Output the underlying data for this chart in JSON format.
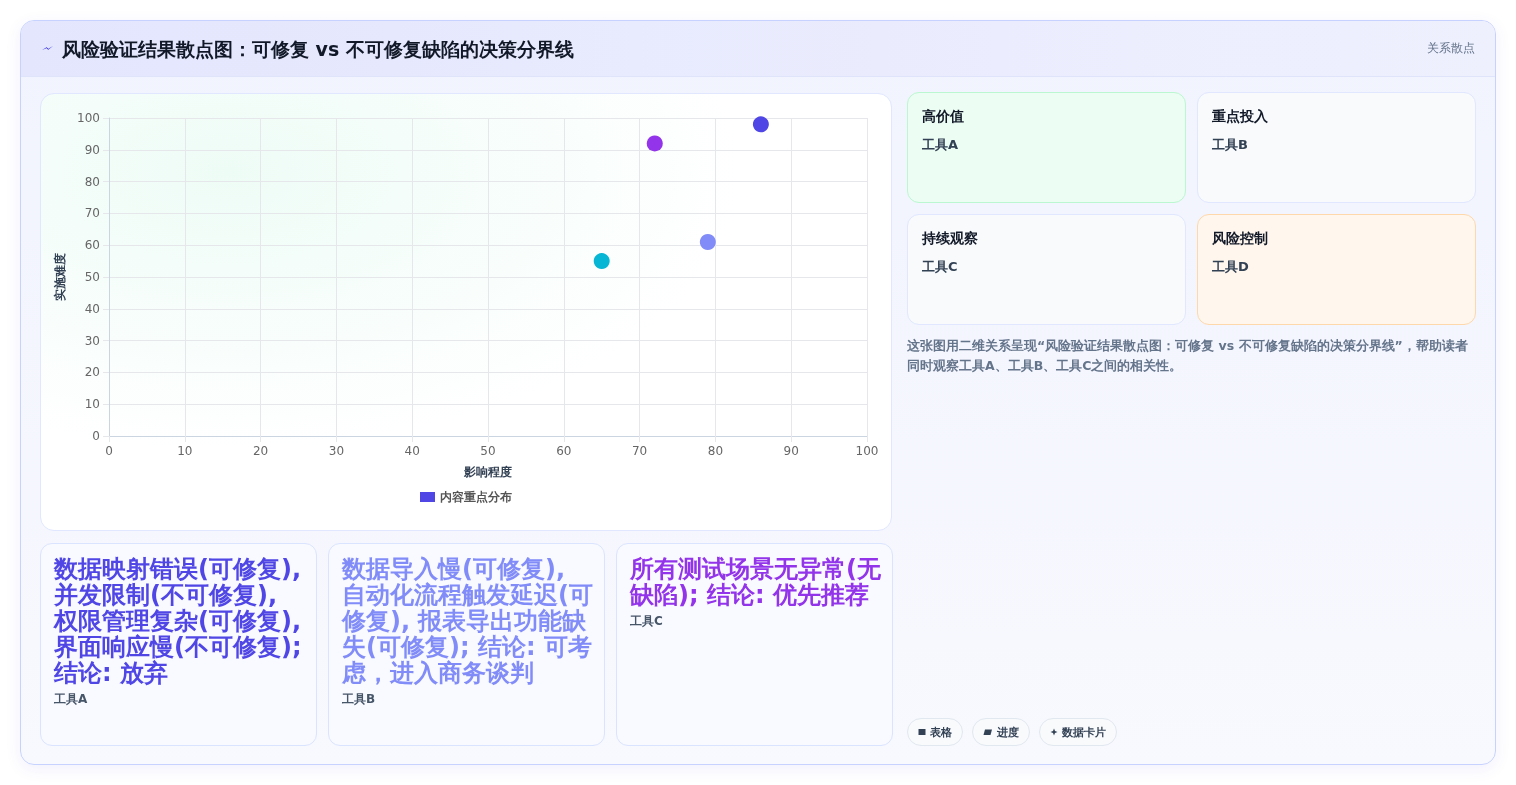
{
  "chart_data": {
    "type": "scatter",
    "title": "风险验证结果散点图：可修复 vs 不可修复缺陷的决策分界线",
    "xlabel": "影响程度",
    "ylabel": "实施难度",
    "x": [
      86,
      79,
      72,
      65
    ],
    "series": [
      {
        "name": "内容重点分布",
        "color": "#4f46e5",
        "colors": [
          "#4f46e5",
          "#818cf8",
          "#9333ea",
          "#06b6d4"
        ],
        "values": [
          98,
          61,
          92,
          55
        ]
      }
    ],
    "xlim": [
      0,
      100
    ],
    "xticks": [
      0,
      10,
      20,
      30,
      40,
      50,
      60,
      70,
      80,
      90,
      100
    ],
    "ylim": [
      0,
      100
    ],
    "yticks": [
      0,
      10,
      20,
      30,
      40,
      50,
      60,
      70,
      80,
      90,
      100
    ],
    "grid": true,
    "legend": "bottom",
    "marker": "circle",
    "annotations": [
      "关系散点",
      "高价值",
      "工具A",
      "重点投入",
      "工具B",
      "持续观察",
      "工具C",
      "风险控制",
      "工具D",
      "这张图用二维关系呈现“风险验证结果散点图：可修复 vs 不可修复缺陷的决策分界线”，帮助读者同时观察工具A、工具B、工具C之间的相关性。",
      "数据映射错误(可修复), 并发限制(不可修复), 权限管理复杂(可修复), 界面响应慢(不可修复); 结论: 放弃",
      "工具A",
      "数据导入慢(可修复), 自动化流程触发延迟(可修复), 报表导出功能缺失(可修复); 结论: 可考虑，进入商务谈判",
      "工具B",
      "所有测试场景无异常(无缺陷); 结论: 优先推荐",
      "工具C",
      "表格",
      "进度",
      "数据卡片"
    ]
  }
}
